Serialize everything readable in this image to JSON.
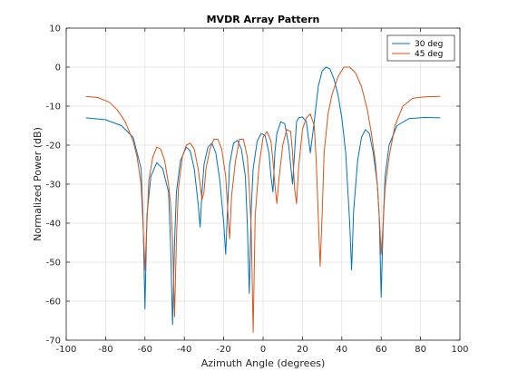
{
  "chart_data": {
    "type": "line",
    "title": "MVDR Array Pattern",
    "xlabel": "Azimuth Angle (degrees)",
    "ylabel": "Normalized Power (dB)",
    "xlim": [
      -100,
      100
    ],
    "ylim": [
      -70,
      10
    ],
    "xticks": [
      -100,
      -80,
      -60,
      -40,
      -20,
      0,
      20,
      40,
      60,
      80,
      100
    ],
    "yticks": [
      -70,
      -60,
      -50,
      -40,
      -30,
      -20,
      -10,
      0,
      10
    ],
    "grid": true,
    "legend_position": "top-right",
    "series": [
      {
        "name": "30 deg",
        "color": "#0072BD",
        "x": [
          -90,
          -80,
          -72,
          -66,
          -62,
          -61,
          -60,
          -59,
          -57,
          -54,
          -51,
          -48,
          -47,
          -46,
          -45,
          -44,
          -42,
          -39,
          -37,
          -35,
          -33,
          -32,
          -31,
          -30,
          -28,
          -26,
          -24,
          -22,
          -20,
          -19,
          -18,
          -17,
          -15,
          -13,
          -11,
          -9,
          -8,
          -7,
          -6,
          -5,
          -3,
          -1,
          1,
          3,
          4,
          5,
          6,
          7,
          9,
          11,
          13,
          15,
          16,
          17,
          18,
          20,
          22,
          24,
          26,
          28,
          30,
          32,
          34,
          36,
          38,
          40,
          42,
          44,
          45,
          46,
          48,
          50,
          52,
          54,
          56,
          58,
          59,
          60,
          61,
          62,
          64,
          68,
          74,
          82,
          90
        ],
        "y": [
          -13,
          -13.5,
          -15,
          -18,
          -26,
          -38,
          -62,
          -38,
          -28,
          -24.5,
          -26,
          -32,
          -45,
          -66,
          -45,
          -32,
          -24,
          -20.5,
          -21.5,
          -26,
          -35,
          -41,
          -32,
          -25,
          -20.5,
          -19.5,
          -22,
          -29,
          -40,
          -48,
          -36,
          -25,
          -19.5,
          -18.8,
          -21,
          -28,
          -40,
          -58,
          -36,
          -26,
          -19,
          -17,
          -17.5,
          -22,
          -28,
          -32,
          -22,
          -17,
          -14,
          -14.5,
          -20,
          -30,
          -22,
          -14,
          -13,
          -12.8,
          -14,
          -22,
          -14,
          -5,
          -1,
          0,
          -0.5,
          -3,
          -7,
          -13,
          -22,
          -40,
          -52,
          -37,
          -24,
          -18,
          -16,
          -17,
          -22,
          -30,
          -38,
          -59,
          -40,
          -28,
          -20,
          -15,
          -13.2,
          -12.9,
          -13
        ]
      },
      {
        "name": "45 deg",
        "color": "#D95319",
        "x": [
          -90,
          -84,
          -78,
          -74,
          -70,
          -66,
          -64,
          -62,
          -61,
          -60,
          -59,
          -58,
          -56,
          -54,
          -52,
          -50,
          -48,
          -47,
          -46,
          -45,
          -44,
          -43,
          -41,
          -39,
          -37,
          -35,
          -33,
          -32,
          -31,
          -30,
          -29,
          -27,
          -25,
          -23,
          -21,
          -19,
          -18,
          -17,
          -16,
          -14,
          -12,
          -10,
          -8,
          -7,
          -6,
          -5,
          -4,
          -2,
          0,
          2,
          4,
          5,
          6,
          7,
          8,
          10,
          12,
          14,
          15,
          16,
          17,
          18,
          20,
          22,
          24,
          26,
          27,
          28,
          29,
          30,
          31,
          33,
          35,
          38,
          41,
          44,
          47,
          50,
          53,
          55,
          57,
          58,
          59,
          60,
          61,
          62,
          64,
          67,
          71,
          76,
          82,
          90
        ],
        "y": [
          -7.5,
          -7.8,
          -9,
          -11,
          -14,
          -19,
          -23,
          -30,
          -40,
          -52,
          -40,
          -29,
          -23,
          -20.5,
          -21,
          -24,
          -30,
          -35,
          -44,
          -64,
          -44,
          -31,
          -23,
          -20,
          -19.5,
          -21,
          -26,
          -30,
          -34,
          -32,
          -26,
          -21,
          -18.5,
          -18.5,
          -21,
          -28,
          -36,
          -44,
          -33,
          -24,
          -18.5,
          -18.5,
          -23,
          -31,
          -42,
          -68,
          -38,
          -25,
          -18,
          -16.5,
          -19,
          -24,
          -30,
          -35,
          -29,
          -20,
          -16,
          -16.5,
          -22,
          -31,
          -35,
          -26,
          -16,
          -13,
          -12,
          -15,
          -24,
          -38,
          -51,
          -38,
          -22,
          -12,
          -7,
          -2.5,
          0,
          0,
          -1.5,
          -5,
          -11,
          -17,
          -24,
          -30,
          -38,
          -48,
          -40,
          -31,
          -23,
          -15,
          -10,
          -8,
          -7.6,
          -7.5
        ]
      }
    ]
  }
}
